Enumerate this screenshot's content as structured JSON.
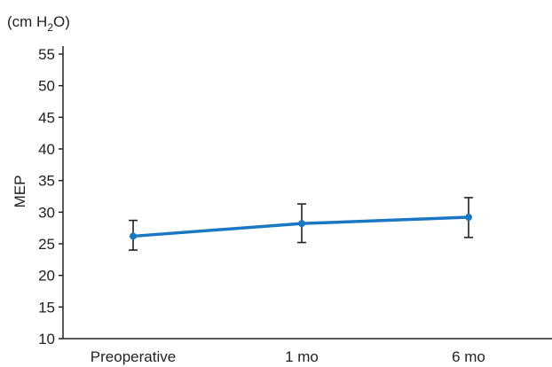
{
  "chart_data": {
    "type": "line",
    "unit_label": {
      "prefix": "(cm H",
      "sub": "2",
      "suffix": "O)"
    },
    "ylabel": "MEP",
    "xlabel": "",
    "title": "",
    "categories": [
      "Preoperative",
      "1 mo",
      "6 mo"
    ],
    "series": [
      {
        "values": [
          26.2,
          28.2,
          29.2
        ],
        "error_low": [
          24.0,
          25.2,
          26.0
        ],
        "error_high": [
          28.7,
          31.3,
          32.3
        ],
        "color": "#1a78c2"
      }
    ],
    "ylim": [
      10,
      55
    ],
    "yticks": [
      "10",
      "15",
      "20",
      "25",
      "30",
      "35",
      "40",
      "45",
      "50",
      "55"
    ],
    "grid": false,
    "legend": "none",
    "error_bar_color": "#222222"
  }
}
